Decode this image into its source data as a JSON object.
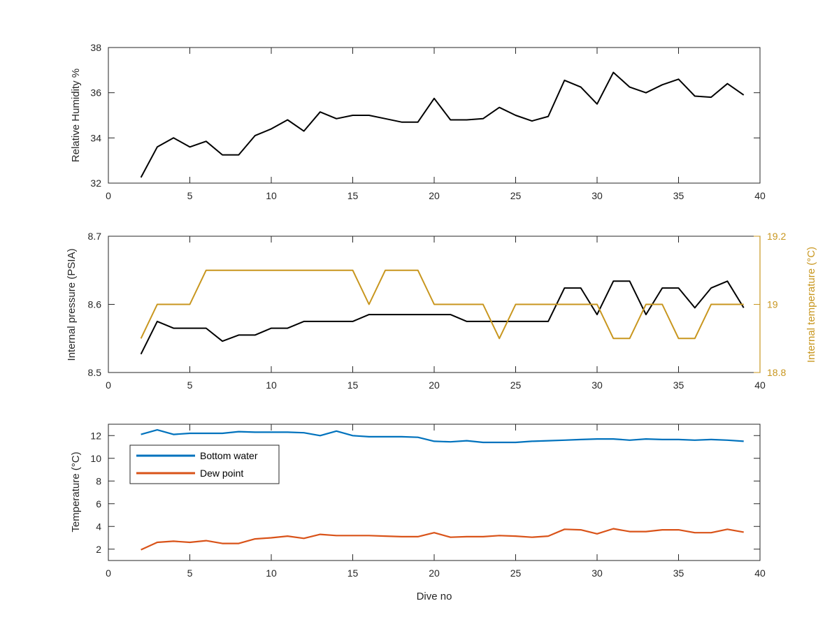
{
  "chart_data": [
    {
      "type": "line",
      "title": "",
      "xlabel": "",
      "ylabel": "Relative Humidity %",
      "xlim": [
        0,
        40
      ],
      "ylim": [
        32,
        38
      ],
      "xticks": [
        0,
        5,
        10,
        15,
        20,
        25,
        30,
        35,
        40
      ],
      "yticks": [
        32,
        34,
        36,
        38
      ],
      "grid": false,
      "series": [
        {
          "color": "#000000",
          "x": [
            2,
            3,
            4,
            5,
            6,
            7,
            8,
            9,
            10,
            11,
            12,
            13,
            14,
            15,
            16,
            17,
            18,
            19,
            20,
            21,
            22,
            23,
            24,
            25,
            26,
            27,
            28,
            29,
            30,
            31,
            32,
            33,
            34,
            35,
            36,
            37,
            38,
            39
          ],
          "values": [
            32.25,
            33.6,
            34.0,
            33.6,
            33.85,
            33.25,
            33.25,
            34.1,
            34.4,
            34.8,
            34.3,
            35.15,
            34.85,
            35.0,
            35.0,
            34.85,
            34.7,
            34.7,
            35.75,
            34.8,
            34.8,
            34.85,
            35.35,
            35.0,
            34.75,
            34.95,
            36.55,
            36.25,
            35.5,
            36.9,
            36.25,
            36.0,
            36.35,
            36.6,
            35.85,
            35.8,
            36.4,
            35.9
          ]
        }
      ]
    },
    {
      "type": "line",
      "title": "",
      "xlabel": "",
      "ylabel": "Internal pressure (PSIA)",
      "ylabel_right": "Internal temperature (°C)",
      "xlim": [
        0,
        40
      ],
      "ylim": [
        8.5,
        8.7
      ],
      "ylim_right": [
        18.8,
        19.2
      ],
      "xticks": [
        0,
        5,
        10,
        15,
        20,
        25,
        30,
        35,
        40
      ],
      "yticks": [
        8.5,
        8.6,
        8.7
      ],
      "yticks_right": [
        18.8,
        19,
        19.2
      ],
      "grid": false,
      "series": [
        {
          "axis": "left",
          "color": "#000000",
          "x": [
            2,
            3,
            4,
            5,
            6,
            7,
            8,
            9,
            10,
            11,
            12,
            13,
            14,
            15,
            16,
            17,
            18,
            19,
            20,
            21,
            22,
            23,
            24,
            25,
            26,
            27,
            28,
            29,
            30,
            31,
            32,
            33,
            34,
            35,
            36,
            37,
            38,
            39
          ],
          "values": [
            8.527,
            8.575,
            8.565,
            8.565,
            8.565,
            8.546,
            8.555,
            8.555,
            8.565,
            8.565,
            8.575,
            8.575,
            8.575,
            8.575,
            8.585,
            8.585,
            8.585,
            8.585,
            8.585,
            8.585,
            8.575,
            8.575,
            8.575,
            8.575,
            8.575,
            8.575,
            8.624,
            8.624,
            8.585,
            8.634,
            8.634,
            8.585,
            8.624,
            8.624,
            8.595,
            8.624,
            8.634,
            8.595
          ]
        },
        {
          "axis": "right",
          "color": "#C8961E",
          "x": [
            2,
            3,
            4,
            5,
            6,
            7,
            8,
            9,
            10,
            11,
            12,
            13,
            14,
            15,
            16,
            17,
            18,
            19,
            20,
            21,
            22,
            23,
            24,
            25,
            26,
            27,
            28,
            29,
            30,
            31,
            32,
            33,
            34,
            35,
            36,
            37,
            38,
            39
          ],
          "values": [
            18.9,
            19.0,
            19.0,
            19.0,
            19.1,
            19.1,
            19.1,
            19.1,
            19.1,
            19.1,
            19.1,
            19.1,
            19.1,
            19.1,
            19.0,
            19.1,
            19.1,
            19.1,
            19.0,
            19.0,
            19.0,
            19.0,
            18.9,
            19.0,
            19.0,
            19.0,
            19.0,
            19.0,
            19.0,
            18.9,
            18.9,
            19.0,
            19.0,
            18.9,
            18.9,
            19.0,
            19.0,
            19.0
          ]
        }
      ]
    },
    {
      "type": "line",
      "title": "",
      "xlabel": "Dive no",
      "ylabel": "Temperature (°C)",
      "xlim": [
        0,
        40
      ],
      "ylim": [
        1,
        13
      ],
      "xticks": [
        0,
        5,
        10,
        15,
        20,
        25,
        30,
        35,
        40
      ],
      "yticks": [
        2,
        4,
        6,
        8,
        10,
        12
      ],
      "grid": false,
      "legend": "top-left",
      "series": [
        {
          "name": "Bottom water",
          "color": "#0072BD",
          "x": [
            2,
            3,
            4,
            5,
            6,
            7,
            8,
            9,
            10,
            11,
            12,
            13,
            14,
            15,
            16,
            17,
            18,
            19,
            20,
            21,
            22,
            23,
            24,
            25,
            26,
            27,
            28,
            29,
            30,
            31,
            32,
            33,
            34,
            35,
            36,
            37,
            38,
            39
          ],
          "values": [
            12.1,
            12.5,
            12.1,
            12.2,
            12.2,
            12.2,
            12.35,
            12.3,
            12.3,
            12.3,
            12.25,
            12.0,
            12.4,
            12.0,
            11.9,
            11.9,
            11.9,
            11.85,
            11.5,
            11.45,
            11.55,
            11.4,
            11.4,
            11.4,
            11.5,
            11.55,
            11.6,
            11.65,
            11.7,
            11.7,
            11.6,
            11.7,
            11.65,
            11.65,
            11.6,
            11.65,
            11.6,
            11.5
          ]
        },
        {
          "name": "Dew point",
          "color": "#D95319",
          "x": [
            2,
            3,
            4,
            5,
            6,
            7,
            8,
            9,
            10,
            11,
            12,
            13,
            14,
            15,
            16,
            17,
            18,
            19,
            20,
            21,
            22,
            23,
            24,
            25,
            26,
            27,
            28,
            29,
            30,
            31,
            32,
            33,
            34,
            35,
            36,
            37,
            38,
            39
          ],
          "values": [
            1.95,
            2.6,
            2.7,
            2.6,
            2.75,
            2.5,
            2.5,
            2.9,
            3.0,
            3.15,
            2.95,
            3.3,
            3.2,
            3.2,
            3.2,
            3.15,
            3.1,
            3.1,
            3.45,
            3.05,
            3.1,
            3.1,
            3.2,
            3.15,
            3.05,
            3.15,
            3.75,
            3.7,
            3.35,
            3.8,
            3.55,
            3.55,
            3.7,
            3.7,
            3.45,
            3.45,
            3.75,
            3.5
          ]
        }
      ]
    }
  ]
}
